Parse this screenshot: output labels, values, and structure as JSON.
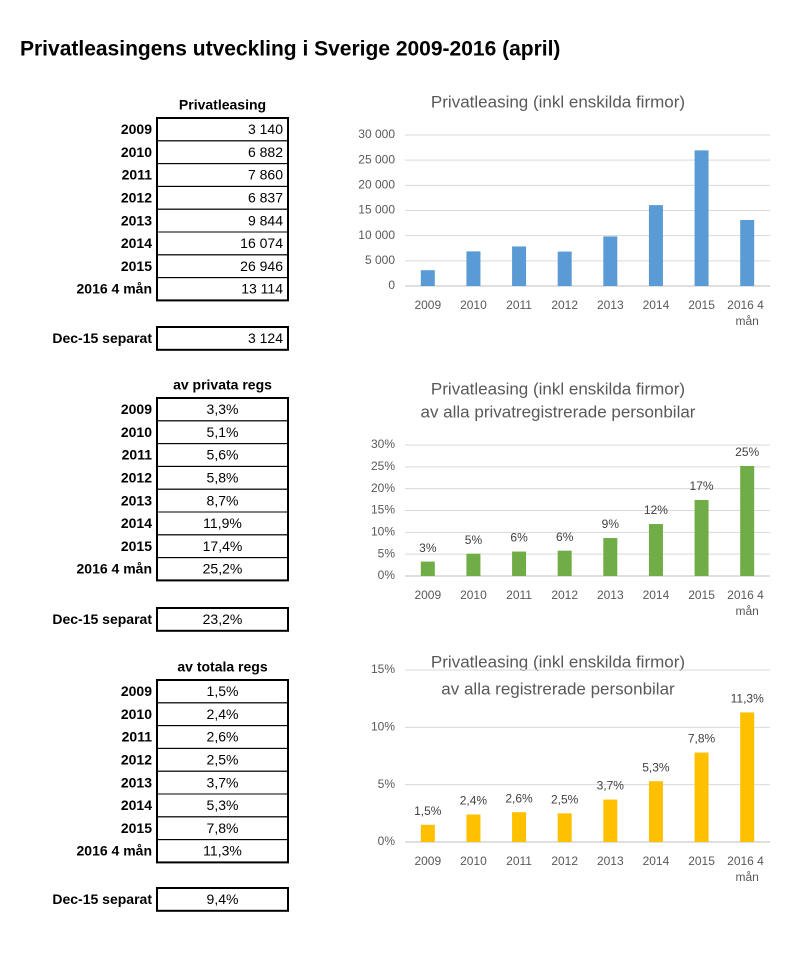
{
  "title": "Privatleasingens utveckling i Sverige 2009-2016 (april)",
  "tables": [
    {
      "header": "Privatleasing",
      "align": "right",
      "rows": [
        [
          "2009",
          "3 140"
        ],
        [
          "2010",
          "6 882"
        ],
        [
          "2011",
          "7 860"
        ],
        [
          "2012",
          "6 837"
        ],
        [
          "2013",
          "9 844"
        ],
        [
          "2014",
          "16 074"
        ],
        [
          "2015",
          "26 946"
        ],
        [
          "2016 4 mån",
          "13 114"
        ]
      ],
      "separate": [
        "Dec-15 separat",
        "3 124"
      ]
    },
    {
      "header": "av privata regs",
      "align": "center",
      "rows": [
        [
          "2009",
          "3,3%"
        ],
        [
          "2010",
          "5,1%"
        ],
        [
          "2011",
          "5,6%"
        ],
        [
          "2012",
          "5,8%"
        ],
        [
          "2013",
          "8,7%"
        ],
        [
          "2014",
          "11,9%"
        ],
        [
          "2015",
          "17,4%"
        ],
        [
          "2016 4 mån",
          "25,2%"
        ]
      ],
      "separate": [
        "Dec-15 separat",
        "23,2%"
      ]
    },
    {
      "header": "av totala regs",
      "align": "center",
      "rows": [
        [
          "2009",
          "1,5%"
        ],
        [
          "2010",
          "2,4%"
        ],
        [
          "2011",
          "2,6%"
        ],
        [
          "2012",
          "2,5%"
        ],
        [
          "2013",
          "3,7%"
        ],
        [
          "2014",
          "5,3%"
        ],
        [
          "2015",
          "7,8%"
        ],
        [
          "2016 4 mån",
          "11,3%"
        ]
      ],
      "separate": [
        "Dec-15 separat",
        "9,4%"
      ]
    }
  ],
  "chart_data": [
    {
      "type": "bar",
      "title": "Privatleasing (inkl enskilda firmor)",
      "categories": [
        "2009",
        "2010",
        "2011",
        "2012",
        "2013",
        "2014",
        "2015",
        "2016 4 mån"
      ],
      "values": [
        3140,
        6882,
        7860,
        6837,
        9844,
        16074,
        26946,
        13114
      ],
      "color": "#5b9bd5",
      "ylim": [
        0,
        30000
      ],
      "yticks": [
        0,
        {
          "value": 5000,
          "label": "5 000"
        },
        {
          "value": 10000,
          "label": "10 000"
        },
        {
          "value": 15000,
          "label": "15 000"
        },
        {
          "value": 20000,
          "label": "20 000"
        },
        {
          "value": 25000,
          "label": "25 000"
        },
        {
          "value": 30000,
          "label": "30 000"
        }
      ],
      "grid": true
    },
    {
      "type": "bar",
      "title": "Privatleasing (inkl enskilda firmor)",
      "subtitle": "av alla privatregistrerade personbilar",
      "categories": [
        "2009",
        "2010",
        "2011",
        "2012",
        "2013",
        "2014",
        "2015",
        "2016 4 mån"
      ],
      "values": [
        3.3,
        5.1,
        5.6,
        5.8,
        8.7,
        11.9,
        17.4,
        25.2
      ],
      "value_labels": [
        "3%",
        "5%",
        "6%",
        "6%",
        "9%",
        "12%",
        "17%",
        "25%"
      ],
      "color": "#70ad47",
      "ylim": [
        0,
        30
      ],
      "yticks": [
        {
          "value": 0,
          "label": "0%"
        },
        {
          "value": 5,
          "label": "5%"
        },
        {
          "value": 10,
          "label": "10%"
        },
        {
          "value": 15,
          "label": "15%"
        },
        {
          "value": 20,
          "label": "20%"
        },
        {
          "value": 25,
          "label": "25%"
        },
        {
          "value": 30,
          "label": "30%"
        }
      ],
      "grid": true
    },
    {
      "type": "bar",
      "title": "Privatleasing (inkl enskilda firmor)",
      "subtitle": "av alla registrerade personbilar",
      "categories": [
        "2009",
        "2010",
        "2011",
        "2012",
        "2013",
        "2014",
        "2015",
        "2016 4 mån"
      ],
      "values": [
        1.5,
        2.4,
        2.6,
        2.5,
        3.7,
        5.3,
        7.8,
        11.3
      ],
      "value_labels": [
        "1,5%",
        "2,4%",
        "2,6%",
        "2,5%",
        "3,7%",
        "5,3%",
        "7,8%",
        "11,3%"
      ],
      "color": "#ffc000",
      "ylim": [
        0,
        15
      ],
      "yticks": [
        {
          "value": 0,
          "label": "0%"
        },
        {
          "value": 5,
          "label": "5%"
        },
        {
          "value": 10,
          "label": "10%"
        },
        {
          "value": 15,
          "label": "15%"
        }
      ],
      "grid": true
    }
  ]
}
